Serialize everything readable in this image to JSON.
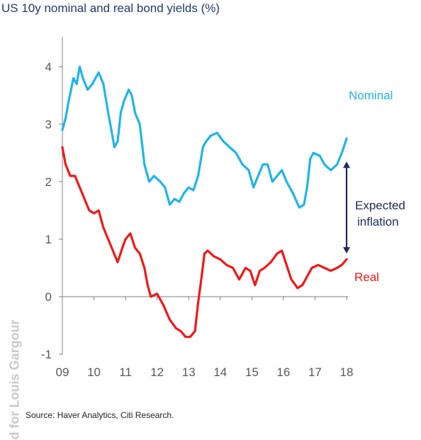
{
  "title": "US 10y nominal and real bond yields (%)",
  "source": "Source: Haver Analytics, Citi Research.",
  "watermark": "d for Louis Gargour",
  "colors": {
    "nominal": "#1fb5e8",
    "real": "#f01818",
    "arrow": "#1f2a5c",
    "axis": "#7f7f7f",
    "tick_text": "#595959"
  },
  "chart_data": {
    "type": "line",
    "title": "US 10y nominal and real bond yields (%)",
    "xlabel": "",
    "ylabel": "",
    "xlim": [
      2009.0,
      2018.0
    ],
    "ylim": [
      -1,
      4.5
    ],
    "x_ticks": [
      {
        "value": 2009,
        "label": "09"
      },
      {
        "value": 2010,
        "label": "10"
      },
      {
        "value": 2011,
        "label": "11"
      },
      {
        "value": 2012,
        "label": "12"
      },
      {
        "value": 2013,
        "label": "13"
      },
      {
        "value": 2014,
        "label": "14"
      },
      {
        "value": 2015,
        "label": "15"
      },
      {
        "value": 2016,
        "label": "16"
      },
      {
        "value": 2017,
        "label": "17"
      },
      {
        "value": 2018,
        "label": "18"
      }
    ],
    "y_ticks": [
      {
        "value": -1,
        "label": "-1"
      },
      {
        "value": 0,
        "label": "0"
      },
      {
        "value": 1,
        "label": "1"
      },
      {
        "value": 2,
        "label": "2"
      },
      {
        "value": 3,
        "label": "3"
      },
      {
        "value": 4,
        "label": "4"
      }
    ],
    "grid": false,
    "legend": "inline labels at right",
    "series": [
      {
        "name": "Nominal",
        "color": "#1fb5e8",
        "x": [
          2009.0,
          2009.1,
          2009.2,
          2009.35,
          2009.45,
          2009.55,
          2009.65,
          2009.8,
          2009.95,
          2010.15,
          2010.3,
          2010.45,
          2010.55,
          2010.65,
          2010.75,
          2010.85,
          2010.95,
          2011.1,
          2011.2,
          2011.3,
          2011.45,
          2011.6,
          2011.75,
          2011.9,
          2012.1,
          2012.25,
          2012.4,
          2012.55,
          2012.7,
          2012.85,
          2013.0,
          2013.15,
          2013.3,
          2013.45,
          2013.55,
          2013.7,
          2013.9,
          2014.1,
          2014.3,
          2014.5,
          2014.7,
          2014.9,
          2015.05,
          2015.2,
          2015.35,
          2015.5,
          2015.65,
          2015.8,
          2015.95,
          2016.1,
          2016.3,
          2016.5,
          2016.65,
          2016.75,
          2016.85,
          2016.95,
          2017.15,
          2017.3,
          2017.5,
          2017.7,
          2017.85,
          2018.0
        ],
        "values": [
          2.9,
          3.1,
          3.4,
          3.8,
          3.7,
          4.0,
          3.8,
          3.6,
          3.7,
          3.9,
          3.7,
          3.2,
          2.9,
          2.6,
          2.7,
          3.2,
          3.4,
          3.6,
          3.5,
          3.2,
          3.0,
          2.3,
          2.0,
          2.1,
          2.0,
          1.9,
          1.6,
          1.7,
          1.65,
          1.8,
          1.9,
          1.85,
          2.1,
          2.6,
          2.7,
          2.8,
          2.85,
          2.7,
          2.6,
          2.5,
          2.3,
          2.2,
          1.9,
          2.1,
          2.3,
          2.3,
          2.0,
          2.1,
          2.2,
          2.0,
          1.8,
          1.55,
          1.6,
          1.9,
          2.4,
          2.5,
          2.45,
          2.3,
          2.2,
          2.3,
          2.5,
          2.75
        ]
      },
      {
        "name": "Real",
        "color": "#f01818",
        "x": [
          2009.0,
          2009.1,
          2009.25,
          2009.4,
          2009.55,
          2009.7,
          2009.85,
          2010.0,
          2010.15,
          2010.3,
          2010.45,
          2010.6,
          2010.75,
          2010.9,
          2011.0,
          2011.15,
          2011.3,
          2011.45,
          2011.6,
          2011.7,
          2011.8,
          2012.0,
          2012.2,
          2012.4,
          2012.6,
          2012.75,
          2012.9,
          2013.05,
          2013.2,
          2013.3,
          2013.4,
          2013.5,
          2013.6,
          2013.8,
          2014.0,
          2014.2,
          2014.4,
          2014.6,
          2014.8,
          2014.95,
          2015.1,
          2015.25,
          2015.4,
          2015.6,
          2015.8,
          2015.95,
          2016.1,
          2016.25,
          2016.45,
          2016.6,
          2016.75,
          2016.9,
          2017.1,
          2017.3,
          2017.5,
          2017.7,
          2017.85,
          2018.0
        ],
        "values": [
          2.6,
          2.3,
          2.1,
          2.1,
          1.9,
          1.7,
          1.5,
          1.45,
          1.5,
          1.2,
          1.0,
          0.8,
          0.6,
          0.85,
          1.0,
          1.1,
          0.85,
          0.75,
          0.5,
          0.2,
          0.0,
          0.05,
          -0.15,
          -0.4,
          -0.55,
          -0.6,
          -0.7,
          -0.7,
          -0.6,
          -0.1,
          0.3,
          0.75,
          0.8,
          0.7,
          0.65,
          0.55,
          0.5,
          0.3,
          0.5,
          0.45,
          0.2,
          0.45,
          0.5,
          0.6,
          0.75,
          0.8,
          0.55,
          0.3,
          0.15,
          0.2,
          0.35,
          0.5,
          0.55,
          0.5,
          0.45,
          0.5,
          0.55,
          0.65
        ]
      }
    ],
    "annotations": [
      {
        "text": "Nominal",
        "color": "#1fb5e8"
      },
      {
        "text": "Real",
        "color": "#f01818"
      },
      {
        "text_lines": [
          "Expected",
          "inflation"
        ],
        "color": "#1f2a5c",
        "kind": "double-arrow",
        "x": 2018.0,
        "from": 0.75,
        "to": 2.35
      }
    ]
  }
}
